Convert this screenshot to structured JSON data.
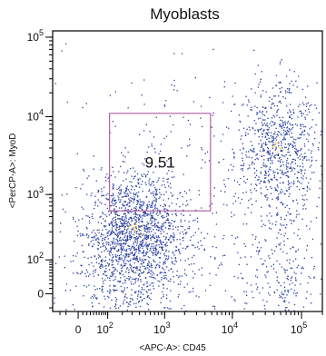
{
  "chart_data": {
    "type": "scatter",
    "title": "Myoblasts",
    "xlabel": "<APC-A>: CD45",
    "ylabel": "<PerCP-A>: MyoD",
    "x_scale": "biexponential",
    "y_scale": "biexponential",
    "xlim": [
      -80,
      200000
    ],
    "ylim": [
      -40,
      120000
    ],
    "x_ticks": [
      {
        "value": 0,
        "label": "0"
      },
      {
        "value": 100,
        "label": "10",
        "exp": "2"
      },
      {
        "value": 1000,
        "label": "10",
        "exp": "3"
      },
      {
        "value": 10000,
        "label": "10",
        "exp": "4"
      },
      {
        "value": 100000,
        "label": "10",
        "exp": "5"
      }
    ],
    "y_ticks": [
      {
        "value": 0,
        "label": "0"
      },
      {
        "value": 100,
        "label": "10",
        "exp": "2"
      },
      {
        "value": 1000,
        "label": "10",
        "exp": "3"
      },
      {
        "value": 10000,
        "label": "10",
        "exp": "4"
      },
      {
        "value": 100000,
        "label": "10",
        "exp": "5"
      }
    ],
    "gate": {
      "x_range": [
        110,
        4800
      ],
      "y_range": [
        600,
        11000
      ],
      "label": "9.51",
      "color": "#b565a7"
    },
    "populations": [
      {
        "center_x": 330,
        "center_y": 320,
        "spread_x": 0.35,
        "spread_y": 0.35,
        "fraction": 0.42
      },
      {
        "center_x": 250,
        "center_y": 25,
        "spread_x": 0.45,
        "spread_y": 0.4,
        "fraction": 0.14
      },
      {
        "center_x": 45000,
        "center_y": 4200,
        "spread_x": 0.28,
        "spread_y": 0.4,
        "fraction": 0.22
      },
      {
        "center_x": 55000,
        "center_y": 60,
        "spread_x": 0.25,
        "spread_y": 0.5,
        "fraction": 0.07
      },
      {
        "center_x": 4000,
        "center_y": 800,
        "spread_x": 1.0,
        "spread_y": 0.9,
        "fraction": 0.15
      }
    ],
    "point_count": 3200,
    "dot_color": "#2a3fa0",
    "hot_color": "#e8c020",
    "grid": false
  }
}
